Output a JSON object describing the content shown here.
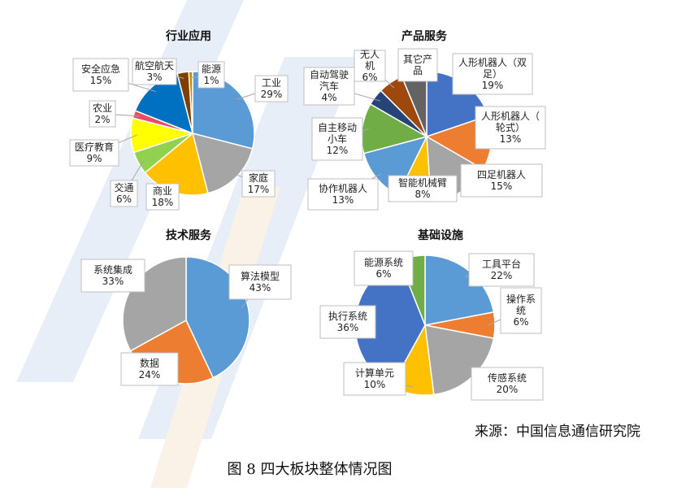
{
  "source": "来源：中国信息通信研究院",
  "caption": "图 8 四大板块整体情况图",
  "chart_data": [
    {
      "type": "pie",
      "title": "行业应用",
      "slices": [
        {
          "name": "工业",
          "value": 29,
          "pct_label": "29%",
          "color": "#5b9bd5"
        },
        {
          "name": "家庭",
          "value": 17,
          "pct_label": "17%",
          "color": "#a5a5a5"
        },
        {
          "name": "商业",
          "value": 18,
          "pct_label": "18%",
          "color": "#ffc000"
        },
        {
          "name": "交通",
          "value": 6,
          "pct_label": "6%",
          "color": "#92d050"
        },
        {
          "name": "医疗教育",
          "value": 9,
          "pct_label": "9%",
          "color": "#ffff00"
        },
        {
          "name": "农业",
          "value": 2,
          "pct_label": "2%",
          "color": "#e84c64"
        },
        {
          "name": "安全应急",
          "value": 15,
          "pct_label": "15%",
          "color": "#0070c0"
        },
        {
          "name": "航空航天",
          "value": 3,
          "pct_label": "3%",
          "color": "#7f3f00"
        },
        {
          "name": "能源",
          "value": 1,
          "pct_label": "1%",
          "color": "#bf9000"
        }
      ]
    },
    {
      "type": "pie",
      "title": "产品服务",
      "slices": [
        {
          "name": "人形机器人（双足）",
          "value": 19,
          "pct_label": "19%",
          "color": "#4472c4"
        },
        {
          "name": "人形机器人（轮式）",
          "value": 13,
          "pct_label": "13%",
          "color": "#ed7d31"
        },
        {
          "name": "四足机器人",
          "value": 15,
          "pct_label": "15%",
          "color": "#a5a5a5"
        },
        {
          "name": "智能机械臂",
          "value": 8,
          "pct_label": "8%",
          "color": "#ffc000"
        },
        {
          "name": "协作机器人",
          "value": 13,
          "pct_label": "13%",
          "color": "#5b9bd5"
        },
        {
          "name": "自主移动小车",
          "value": 12,
          "pct_label": "12%",
          "color": "#70ad47"
        },
        {
          "name": "自动驾驶汽车",
          "value": 4,
          "pct_label": "4%",
          "color": "#264478"
        },
        {
          "name": "无人机",
          "value": 6,
          "pct_label": "6%",
          "color": "#9e480e"
        },
        {
          "name": "其它产品",
          "value": 6,
          "pct_label": "",
          "color": "#636363"
        }
      ]
    },
    {
      "type": "pie",
      "title": "技术服务",
      "slices": [
        {
          "name": "算法模型",
          "value": 43,
          "pct_label": "43%",
          "color": "#5b9bd5"
        },
        {
          "name": "数据",
          "value": 24,
          "pct_label": "24%",
          "color": "#ed7d31"
        },
        {
          "name": "系统集成",
          "value": 33,
          "pct_label": "33%",
          "color": "#a5a5a5"
        }
      ]
    },
    {
      "type": "pie",
      "title": "基础设施",
      "slices": [
        {
          "name": "工具平台",
          "value": 22,
          "pct_label": "22%",
          "color": "#5b9bd5"
        },
        {
          "name": "操作系统",
          "value": 6,
          "pct_label": "6%",
          "color": "#ed7d31"
        },
        {
          "name": "传感系统",
          "value": 20,
          "pct_label": "20%",
          "color": "#a5a5a5"
        },
        {
          "name": "计算单元",
          "value": 10,
          "pct_label": "10%",
          "color": "#ffc000"
        },
        {
          "name": "执行系统",
          "value": 36,
          "pct_label": "36%",
          "color": "#4472c4"
        },
        {
          "name": "能源系统",
          "value": 6,
          "pct_label": "6%",
          "color": "#70ad47"
        }
      ]
    }
  ]
}
